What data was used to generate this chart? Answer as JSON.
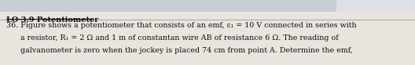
{
  "bg_top_color": "#c8cdd4",
  "bg_bottom_color": "#e8e5df",
  "white_box_color": "#f0ede8",
  "header_text": "LO 3.9 Potentiometer",
  "body_line1": "36. Figure shows a potentiometer that consists of an emf, ε₁ = 10 V connected in series with",
  "body_line2": "      a resistor, R₁ = 2 Ω and 1 m of constantan wire AB of resistance 6 Ω. The reading of",
  "body_line3": "      galvanometer is zero when the jockey is placed 74 cm from point A. Determine the emf,",
  "header_fontsize": 7.0,
  "body_fontsize": 6.8,
  "header_color": "#111111",
  "body_color": "#111111",
  "figsize": [
    5.28,
    0.83
  ],
  "dpi": 100
}
